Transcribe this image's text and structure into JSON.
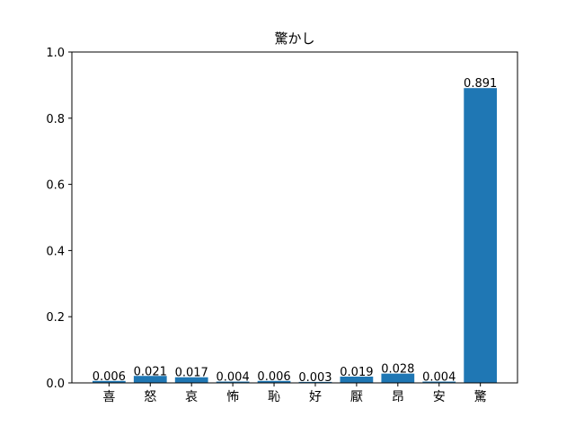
{
  "chart_data": {
    "type": "bar",
    "title": "驚かし",
    "xlabel": "",
    "ylabel": "",
    "categories": [
      "喜",
      "怒",
      "哀",
      "怖",
      "恥",
      "好",
      "厭",
      "昂",
      "安",
      "驚"
    ],
    "values": [
      0.006,
      0.021,
      0.017,
      0.004,
      0.006,
      0.003,
      0.019,
      0.028,
      0.004,
      0.891
    ],
    "value_labels": [
      "0.006",
      "0.021",
      "0.017",
      "0.004",
      "0.006",
      "0.003",
      "0.019",
      "0.028",
      "0.004",
      "0.891"
    ],
    "ylim": [
      0,
      1.0
    ],
    "yticks": [
      0.0,
      0.2,
      0.4,
      0.6,
      0.8,
      1.0
    ],
    "ytick_labels": [
      "0.0",
      "0.2",
      "0.4",
      "0.6",
      "0.8",
      "1.0"
    ],
    "grid": false,
    "legend": "none",
    "bar_color": "#1f77b4"
  }
}
